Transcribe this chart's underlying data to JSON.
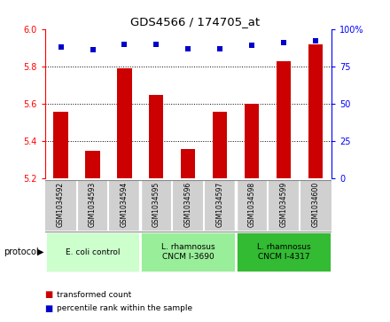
{
  "title": "GDS4566 / 174705_at",
  "categories": [
    "GSM1034592",
    "GSM1034593",
    "GSM1034594",
    "GSM1034595",
    "GSM1034596",
    "GSM1034597",
    "GSM1034598",
    "GSM1034599",
    "GSM1034600"
  ],
  "bar_values": [
    5.56,
    5.35,
    5.79,
    5.65,
    5.36,
    5.56,
    5.6,
    5.83,
    5.92
  ],
  "scatter_values": [
    88,
    86,
    90,
    90,
    87,
    87,
    89,
    91,
    92
  ],
  "ylim_left": [
    5.2,
    6.0
  ],
  "ylim_right": [
    0,
    100
  ],
  "yticks_left": [
    5.2,
    5.4,
    5.6,
    5.8,
    6.0
  ],
  "yticks_right": [
    0,
    25,
    50,
    75,
    100
  ],
  "bar_color": "#cc0000",
  "scatter_color": "#0000cc",
  "bar_bottom": 5.2,
  "group_colors": [
    "#ccffcc",
    "#99ee99",
    "#33bb33"
  ],
  "group_labels": [
    "E. coli control",
    "L. rhamnosus\nCNCM I-3690",
    "L. rhamnosus\nCNCM I-4317"
  ],
  "group_ranges": [
    [
      0,
      3
    ],
    [
      3,
      6
    ],
    [
      6,
      9
    ]
  ],
  "sample_bg": "#d0d0d0",
  "legend_bar_color": "#cc0000",
  "legend_scatter_color": "#0000cc"
}
